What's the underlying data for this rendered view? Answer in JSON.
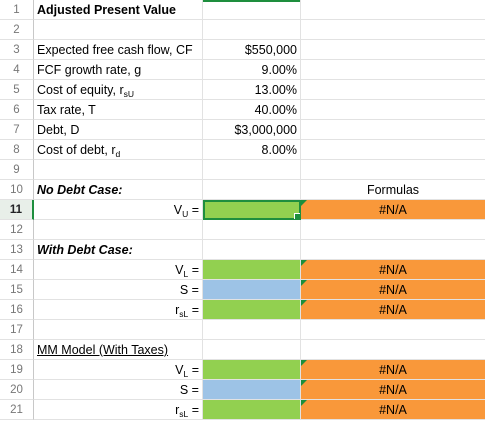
{
  "rows": [
    {
      "n": "1",
      "a": "Adjusted Present Value",
      "a_style": "bold"
    },
    {
      "n": "2"
    },
    {
      "n": "3",
      "a": "Expected free cash flow, CF",
      "b": "$550,000"
    },
    {
      "n": "4",
      "a": "FCF growth rate, g",
      "b": "9.00%"
    },
    {
      "n": "5",
      "a": "Cost of equity, r",
      "a_sub": "sU",
      "b": "13.00%"
    },
    {
      "n": "6",
      "a": "Tax rate, T",
      "b": "40.00%"
    },
    {
      "n": "7",
      "a": "Debt, D",
      "b": "$3,000,000"
    },
    {
      "n": "8",
      "a": "Cost of debt, r",
      "a_sub": "d",
      "b": "8.00%"
    },
    {
      "n": "9"
    },
    {
      "n": "10",
      "a": "No Debt Case:",
      "a_style": "bold-italic",
      "c": "Formulas",
      "c_style": "center"
    },
    {
      "n": "11",
      "a": "V",
      "a_sub": "U",
      "a_suffix": " =",
      "a_align": "right",
      "b_fill": "green",
      "c": "#N/A",
      "c_fill": "orange",
      "selected": true
    },
    {
      "n": "12"
    },
    {
      "n": "13",
      "a": "With Debt Case:",
      "a_style": "bold-italic"
    },
    {
      "n": "14",
      "a": "V",
      "a_sub": "L",
      "a_suffix": " =",
      "a_align": "right",
      "b_fill": "green",
      "c": "#N/A",
      "c_fill": "orange"
    },
    {
      "n": "15",
      "a": "S =",
      "a_align": "right",
      "b_fill": "blue",
      "c": "#N/A",
      "c_fill": "orange"
    },
    {
      "n": "16",
      "a": "r",
      "a_sub": "sL",
      "a_suffix": " =",
      "a_align": "right",
      "b_fill": "green",
      "c": "#N/A",
      "c_fill": "orange"
    },
    {
      "n": "17"
    },
    {
      "n": "18",
      "a": "MM Model (With Taxes)",
      "a_style": "underline"
    },
    {
      "n": "19",
      "a": "V",
      "a_sub": "L",
      "a_suffix": " =",
      "a_align": "right",
      "b_fill": "green",
      "c": "#N/A",
      "c_fill": "orange"
    },
    {
      "n": "20",
      "a": "S =",
      "a_align": "right",
      "b_fill": "blue",
      "c": "#N/A",
      "c_fill": "orange"
    },
    {
      "n": "21",
      "a": "r",
      "a_sub": "sL",
      "a_suffix": " =",
      "a_align": "right",
      "b_fill": "green",
      "c": "#N/A",
      "c_fill": "orange"
    }
  ],
  "colors": {
    "green": "#92d050",
    "blue": "#9dc3e6",
    "orange": "#f9983a",
    "selection": "#1e8e3e"
  }
}
